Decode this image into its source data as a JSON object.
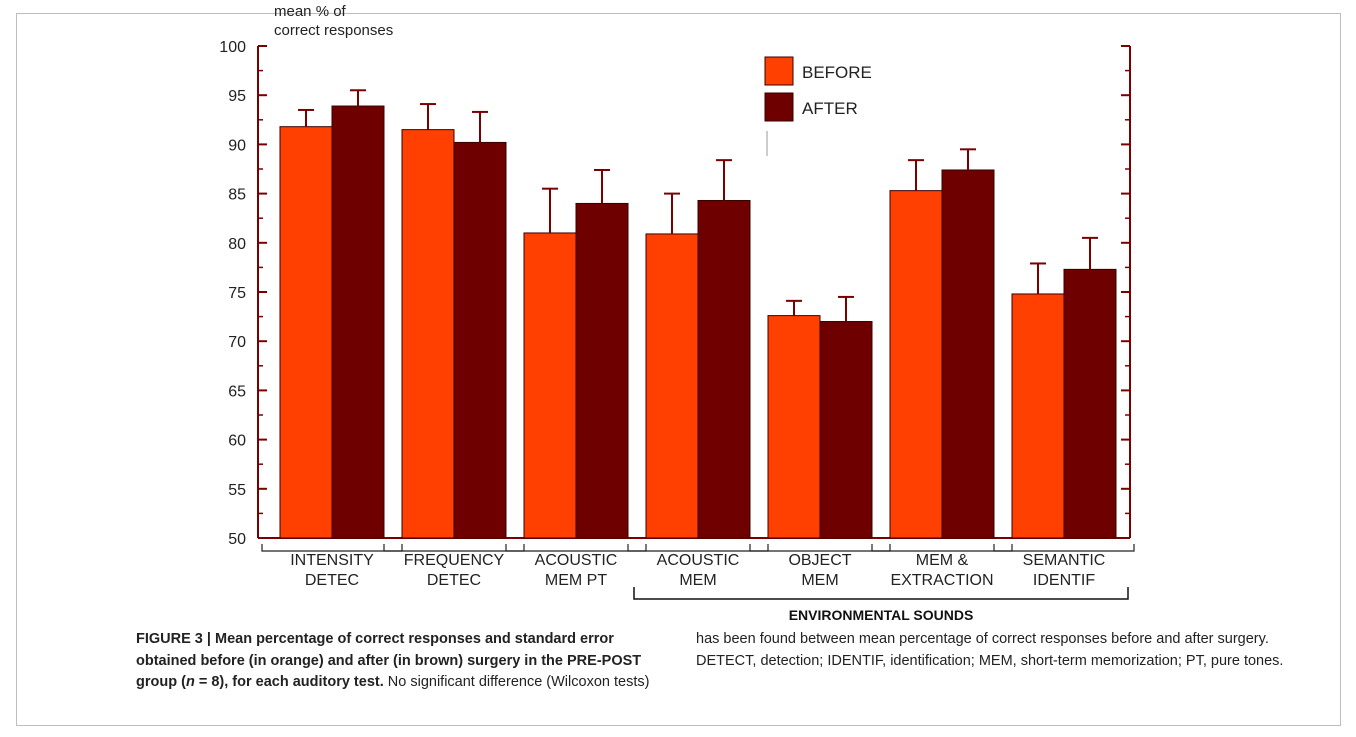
{
  "chart_data": {
    "type": "bar",
    "ylabel": "mean % of\ncorrect responses",
    "ylim": [
      50,
      100
    ],
    "yticks": [
      50,
      55,
      60,
      65,
      70,
      75,
      80,
      85,
      90,
      95,
      100
    ],
    "categories": [
      "INTENSITY\nDETEC",
      "FREQUENCY\nDETEC",
      "ACOUSTIC\nMEM PT",
      "ACOUSTIC\nMEM",
      "OBJECT\nMEM",
      "MEM &\nEXTRACTION",
      "SEMANTIC\nIDENTIF"
    ],
    "series": [
      {
        "name": "BEFORE",
        "color": "#ff4000",
        "values": [
          91.8,
          91.5,
          81.0,
          80.9,
          72.6,
          85.3,
          74.8
        ],
        "error": [
          1.7,
          2.6,
          4.5,
          4.1,
          1.5,
          3.1,
          3.1
        ]
      },
      {
        "name": "AFTER",
        "color": "#6e0000",
        "values": [
          93.9,
          90.2,
          84.0,
          84.3,
          72.0,
          87.4,
          77.3
        ],
        "error": [
          1.6,
          3.1,
          3.4,
          4.1,
          2.5,
          2.1,
          3.2
        ]
      }
    ],
    "group_label": "ENVIRONMENTAL SOUNDS",
    "group_span": [
      3,
      6
    ],
    "legend_position": "top-center",
    "axis_color": "#7a0000"
  },
  "caption": {
    "title": "FIGURE 3 | Mean percentage of correct responses and standard error obtained before (in orange) and after (in brown) surgery in the PRE-POST group (",
    "n_symbol": "n",
    "n_rest": " = 8), for each auditory test.",
    "body_left": " No significant difference (Wilcoxon tests)",
    "body_right": "has been found between mean percentage of correct responses before and after surgery. DETECT, detection; IDENTIF, identification; MEM, short-term memorization; PT, pure tones."
  }
}
